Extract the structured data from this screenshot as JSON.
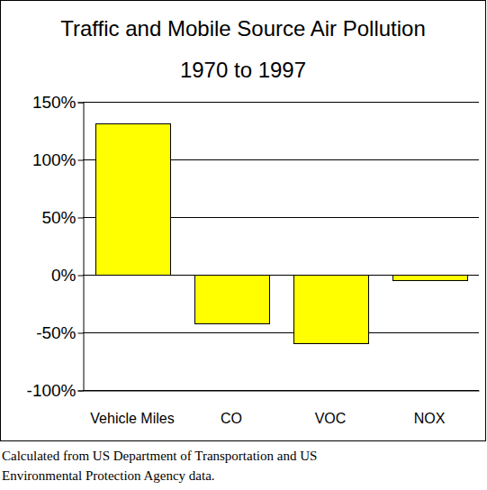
{
  "chart_data": {
    "type": "bar",
    "title": "Traffic and Mobile Source Air Pollution",
    "subtitle": "1970 to 1997",
    "categories": [
      "Vehicle Miles",
      "CO",
      "VOC",
      "NOX"
    ],
    "values": [
      131,
      -42,
      -59,
      -5
    ],
    "color": "#ffff00",
    "ylim": [
      -100,
      150
    ],
    "yticks": [
      {
        "value": -100,
        "label": "-100%"
      },
      {
        "value": -50,
        "label": "-50%"
      },
      {
        "value": 0,
        "label": "0%"
      },
      {
        "value": 50,
        "label": "50%"
      },
      {
        "value": 100,
        "label": "100%"
      },
      {
        "value": 150,
        "label": "150%"
      }
    ],
    "grid": true,
    "note": [
      "Calculated from US Department of Transportation and US",
      "Environmental Protection Agency data."
    ]
  }
}
